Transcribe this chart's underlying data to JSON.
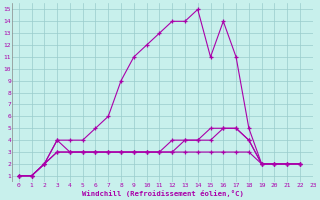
{
  "xlabel": "Windchill (Refroidissement éolien,°C)",
  "bg_color": "#c8f0ec",
  "line_color": "#aa00aa",
  "grid_color": "#99cccc",
  "xlim": [
    -0.5,
    23
  ],
  "ylim": [
    0.5,
    15.5
  ],
  "xticks": [
    0,
    1,
    2,
    3,
    4,
    5,
    6,
    7,
    8,
    9,
    10,
    11,
    12,
    13,
    14,
    15,
    16,
    17,
    18,
    19,
    20,
    21,
    22,
    23
  ],
  "yticks": [
    1,
    2,
    3,
    4,
    5,
    6,
    7,
    8,
    9,
    10,
    11,
    12,
    13,
    14,
    15
  ],
  "series_x": [
    [
      0,
      1,
      2,
      3,
      4,
      5,
      6,
      7,
      8,
      9,
      10,
      11,
      12,
      13,
      14,
      15,
      16,
      17,
      18,
      19,
      20,
      21,
      22
    ],
    [
      0,
      1,
      2,
      3,
      4,
      5,
      6,
      7,
      8,
      9,
      10,
      11,
      12,
      13,
      14,
      15,
      16,
      17,
      18,
      19,
      20,
      21,
      22
    ],
    [
      0,
      1,
      2,
      3,
      4,
      5,
      6,
      7,
      8,
      9,
      10,
      11,
      12,
      13,
      14,
      15,
      16,
      17,
      18,
      19,
      20,
      21,
      22
    ],
    [
      0,
      1,
      2,
      3,
      4,
      5,
      6,
      7,
      8,
      9,
      10,
      11,
      12,
      13,
      14,
      15,
      16,
      17,
      18,
      19,
      20,
      21,
      22
    ]
  ],
  "series_y": [
    [
      1,
      1,
      2,
      4,
      4,
      4,
      5,
      6,
      9,
      11,
      12,
      13,
      14,
      14,
      15,
      11,
      14,
      11,
      5,
      2,
      2,
      2,
      2
    ],
    [
      1,
      1,
      2,
      4,
      3,
      3,
      3,
      3,
      3,
      3,
      3,
      3,
      3,
      3,
      3,
      3,
      3,
      3,
      3,
      2,
      2,
      2,
      2
    ],
    [
      1,
      1,
      2,
      3,
      3,
      3,
      3,
      3,
      3,
      3,
      3,
      3,
      3,
      4,
      4,
      4,
      5,
      5,
      4,
      2,
      2,
      2,
      2
    ],
    [
      1,
      1,
      2,
      3,
      3,
      3,
      3,
      3,
      3,
      3,
      3,
      3,
      4,
      4,
      4,
      5,
      5,
      5,
      4,
      2,
      2,
      2,
      2
    ]
  ]
}
